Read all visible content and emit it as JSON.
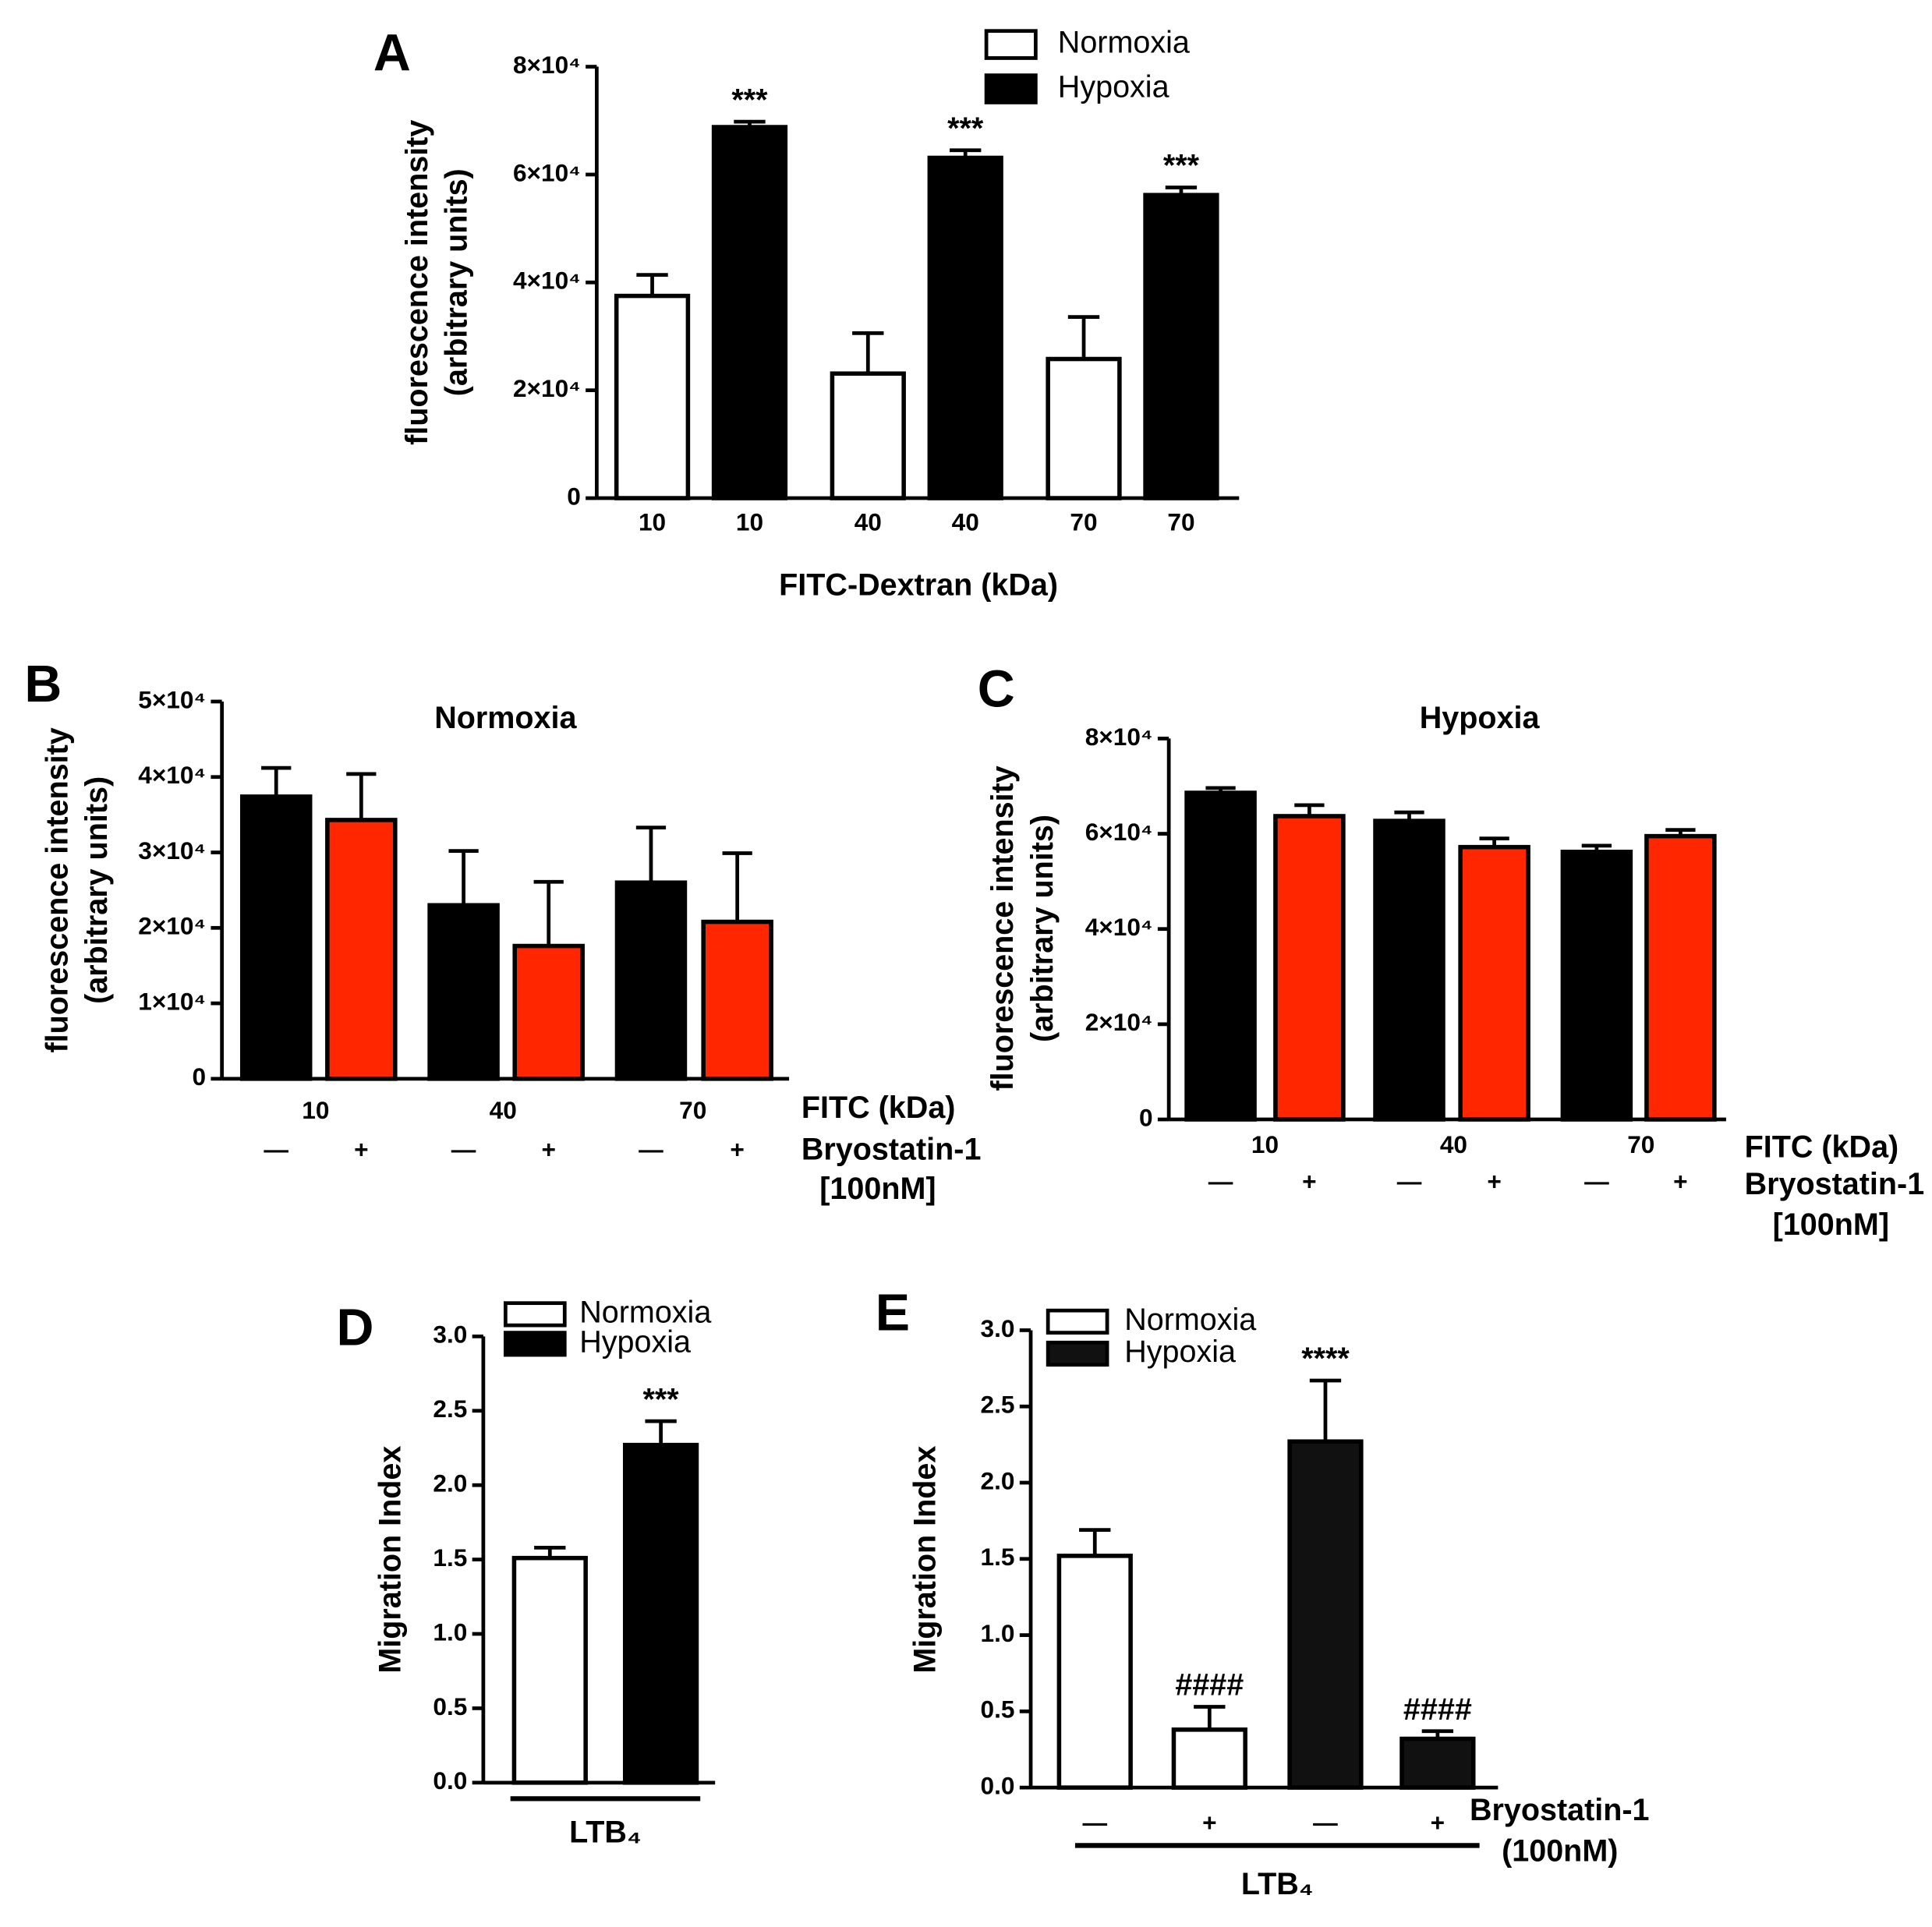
{
  "chart_data": [
    {
      "type": "bar",
      "panel": "A",
      "xlabel": "FITC-Dextran (kDa)",
      "ylabel": [
        "fluorescence intensity",
        "(arbitrary units)"
      ],
      "categories": [
        "10",
        "10",
        "40",
        "40",
        "70",
        "70"
      ],
      "series": [
        {
          "name": "Normoxia",
          "color": "#ffffff",
          "values": [
            37500,
            null,
            23100,
            null,
            25800,
            null
          ],
          "errors": [
            3900,
            null,
            7500,
            null,
            7800,
            null
          ]
        },
        {
          "name": "Hypoxia",
          "color": "#000000",
          "values": [
            null,
            68800,
            null,
            63100,
            null,
            56200
          ],
          "errors": [
            null,
            1000,
            null,
            1400,
            null,
            1400
          ],
          "annotations": [
            null,
            "***",
            null,
            "***",
            null,
            "***"
          ]
        }
      ],
      "ylim": [
        0,
        80000
      ],
      "yticks": [
        0,
        {
          "value": 20000,
          "label": "2×10⁴"
        },
        {
          "value": 40000,
          "label": "4×10⁴"
        },
        {
          "value": 60000,
          "label": "6×10⁴"
        },
        {
          "value": 80000,
          "label": "8×10⁴"
        }
      ],
      "legend": "top-right"
    },
    {
      "type": "bar",
      "panel": "B",
      "title": "Normoxia",
      "ylabel": [
        "fluorescence intensity",
        "(arbitrary units)"
      ],
      "groups": [
        "10",
        "40",
        "70"
      ],
      "categories": [
        "—",
        "+",
        "—",
        "+",
        "—",
        "+"
      ],
      "side_labels": [
        "FITC (kDa)",
        "Bryostatin-1",
        "[100nM]"
      ],
      "series": [
        {
          "color": "#000000",
          "values": [
            37400,
            null,
            23000,
            null,
            26000,
            null
          ],
          "errors": [
            3800,
            null,
            7200,
            null,
            7300,
            null
          ]
        },
        {
          "color": "#ff2600",
          "values": [
            null,
            34300,
            null,
            17600,
            null,
            20800
          ],
          "errors": [
            null,
            6100,
            null,
            8500,
            null,
            9100
          ]
        }
      ],
      "ylim": [
        0,
        50000
      ],
      "yticks": [
        0,
        {
          "value": 10000,
          "label": "1×10⁴"
        },
        {
          "value": 20000,
          "label": "2×10⁴"
        },
        {
          "value": 30000,
          "label": "3×10⁴"
        },
        {
          "value": 40000,
          "label": "4×10⁴"
        },
        {
          "value": 50000,
          "label": "5×10⁴"
        }
      ]
    },
    {
      "type": "bar",
      "panel": "C",
      "title": "Hypoxia",
      "ylabel": [
        "fluorescence intensity",
        "(arbitrary units)"
      ],
      "groups": [
        "10",
        "40",
        "70"
      ],
      "categories": [
        "—",
        "+",
        "—",
        "+",
        "—",
        "+"
      ],
      "side_labels": [
        "FITC (kDa)",
        "Bryostatin-1",
        "[100nM]"
      ],
      "series": [
        {
          "color": "#000000",
          "values": [
            68600,
            null,
            62700,
            null,
            56200,
            null
          ],
          "errors": [
            1000,
            null,
            1800,
            null,
            1300,
            null
          ]
        },
        {
          "color": "#ff2600",
          "values": [
            null,
            63700,
            null,
            57200,
            null,
            59500
          ],
          "errors": [
            null,
            2300,
            null,
            1800,
            null,
            1300
          ]
        }
      ],
      "ylim": [
        0,
        80000
      ],
      "yticks": [
        0,
        {
          "value": 20000,
          "label": "2×10⁴"
        },
        {
          "value": 40000,
          "label": "4×10⁴"
        },
        {
          "value": 60000,
          "label": "6×10⁴"
        },
        {
          "value": 80000,
          "label": "8×10⁴"
        }
      ]
    },
    {
      "type": "bar",
      "panel": "D",
      "ylabel": "Migration Index",
      "group_label": "LTB₄",
      "categories": [
        null,
        null
      ],
      "series": [
        {
          "name": "Normoxia",
          "color": "#ffffff",
          "values": [
            1.51,
            null
          ],
          "errors": [
            0.07,
            null
          ]
        },
        {
          "name": "Hypoxia",
          "color": "#000000",
          "values": [
            null,
            2.27
          ],
          "errors": [
            null,
            0.16
          ],
          "annotations": [
            null,
            "***"
          ]
        }
      ],
      "ylim": [
        0,
        3
      ],
      "yticks": [
        {
          "value": 0,
          "label": "0.0"
        },
        {
          "value": 0.5,
          "label": "0.5"
        },
        {
          "value": 1,
          "label": "1.0"
        },
        {
          "value": 1.5,
          "label": "1.5"
        },
        {
          "value": 2,
          "label": "2.0"
        },
        {
          "value": 2.5,
          "label": "2.5"
        },
        {
          "value": 3,
          "label": "3.0"
        }
      ],
      "legend": "top-left"
    },
    {
      "type": "bar",
      "panel": "E",
      "ylabel": "Migration Index",
      "group_label": "LTB₄",
      "categories": [
        "—",
        "+",
        "—",
        "+"
      ],
      "side_labels": [
        "Bryostatin-1",
        "(100nM)"
      ],
      "series": [
        {
          "name": "Normoxia",
          "color": "#ffffff",
          "values": [
            1.52,
            0.38,
            null,
            null
          ],
          "errors": [
            0.17,
            0.15,
            null,
            null
          ],
          "annotations": [
            null,
            "####",
            null,
            null
          ]
        },
        {
          "name": "Hypoxia",
          "color": "#111111",
          "values": [
            null,
            null,
            2.27,
            0.32
          ],
          "errors": [
            null,
            null,
            0.4,
            0.05
          ],
          "annotations": [
            null,
            null,
            "****",
            "####"
          ]
        }
      ],
      "ylim": [
        0,
        3
      ],
      "yticks": [
        {
          "value": 0,
          "label": "0.0"
        },
        {
          "value": 0.5,
          "label": "0.5"
        },
        {
          "value": 1,
          "label": "1.0"
        },
        {
          "value": 1.5,
          "label": "1.5"
        },
        {
          "value": 2,
          "label": "2.0"
        },
        {
          "value": 2.5,
          "label": "2.5"
        },
        {
          "value": 3,
          "label": "3.0"
        }
      ],
      "legend": "top-left"
    }
  ]
}
